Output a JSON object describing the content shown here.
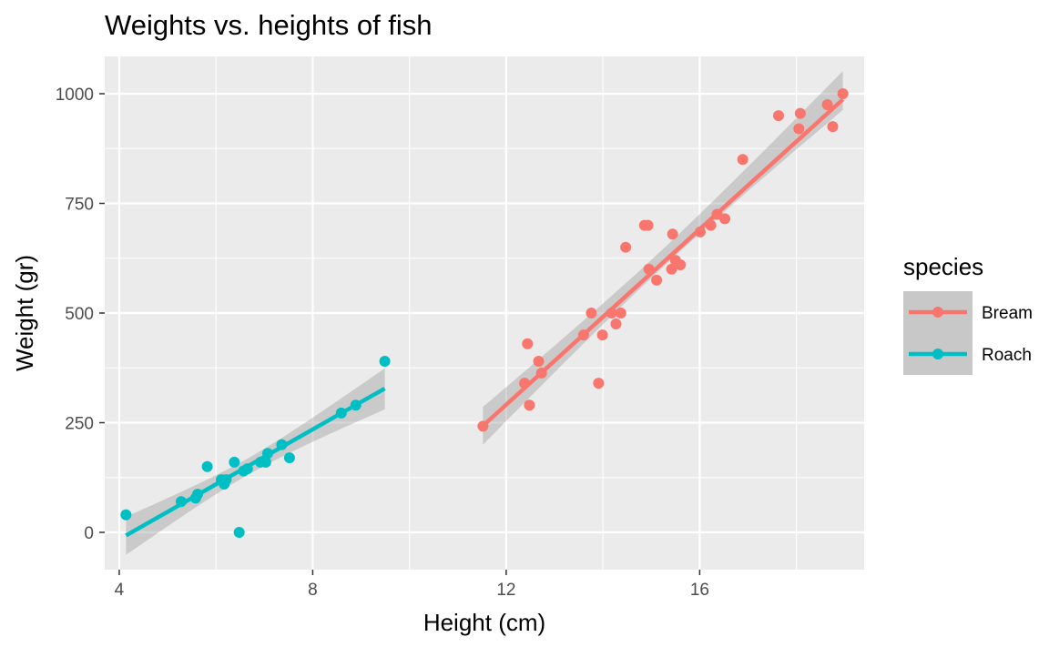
{
  "chart_data": {
    "type": "scatter",
    "title": "Weights vs. heights of fish",
    "xlabel": "Height (cm)",
    "ylabel": "Weight (gr)",
    "xlim": [
      3.7,
      19.4
    ],
    "ylim": [
      -85,
      1085
    ],
    "xticks": [
      4,
      8,
      12,
      16
    ],
    "yticks": [
      0,
      250,
      500,
      750,
      1000
    ],
    "grid": true,
    "legend": {
      "title": "species",
      "position": "right"
    },
    "series": [
      {
        "name": "Bream",
        "color": "#F8766D",
        "points": [
          [
            11.52,
            242
          ],
          [
            12.38,
            340
          ],
          [
            12.44,
            430
          ],
          [
            12.48,
            290
          ],
          [
            12.67,
            390
          ],
          [
            12.73,
            363
          ],
          [
            13.6,
            450
          ],
          [
            13.76,
            500
          ],
          [
            13.91,
            340
          ],
          [
            13.99,
            450
          ],
          [
            14.18,
            500
          ],
          [
            14.27,
            475
          ],
          [
            14.37,
            500
          ],
          [
            14.47,
            650
          ],
          [
            14.86,
            700
          ],
          [
            14.93,
            700
          ],
          [
            14.95,
            600
          ],
          [
            15.11,
            575
          ],
          [
            15.42,
            600
          ],
          [
            15.44,
            680
          ],
          [
            15.5,
            620
          ],
          [
            15.6,
            610
          ],
          [
            16.01,
            685
          ],
          [
            16.23,
            700
          ],
          [
            16.36,
            725
          ],
          [
            16.52,
            715
          ],
          [
            16.89,
            850
          ],
          [
            17.63,
            950
          ],
          [
            18.05,
            920
          ],
          [
            18.08,
            955
          ],
          [
            18.64,
            975
          ],
          [
            18.75,
            925
          ],
          [
            18.96,
            1000
          ]
        ],
        "fit": {
          "x": [
            11.52,
            18.96
          ],
          "y": [
            243,
            987
          ]
        }
      },
      {
        "name": "Roach",
        "color": "#00BFC4",
        "points": [
          [
            4.14,
            40
          ],
          [
            5.28,
            70
          ],
          [
            5.58,
            78
          ],
          [
            5.62,
            87
          ],
          [
            5.82,
            150
          ],
          [
            6.11,
            120
          ],
          [
            6.17,
            110
          ],
          [
            6.21,
            120
          ],
          [
            6.38,
            160
          ],
          [
            6.48,
            0
          ],
          [
            6.57,
            140
          ],
          [
            6.65,
            145
          ],
          [
            6.92,
            160
          ],
          [
            7.03,
            160
          ],
          [
            7.07,
            180
          ],
          [
            7.36,
            200
          ],
          [
            7.52,
            170
          ],
          [
            8.59,
            272
          ],
          [
            8.89,
            290
          ],
          [
            9.49,
            390
          ]
        ],
        "fit": {
          "x": [
            4.14,
            9.49
          ],
          "y": [
            -7,
            328
          ]
        }
      }
    ]
  }
}
